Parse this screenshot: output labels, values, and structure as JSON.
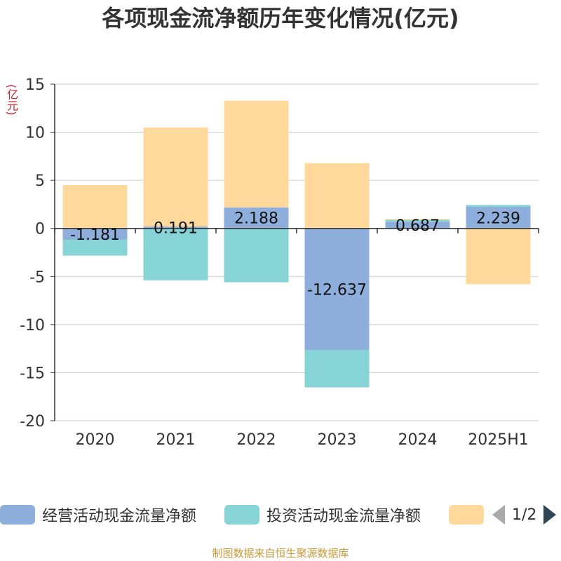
{
  "title": "各项现金流净额历年变化情况(亿元)",
  "unit": "(亿元)",
  "source": "制图数据来自恒生聚源数据库",
  "legend": {
    "items": [
      {
        "label": "经营活动现金流量净额",
        "color": "#8eaedb"
      },
      {
        "label": "投资活动现金流量净额",
        "color": "#86d4d6"
      },
      {
        "label": "",
        "color": "#fed99b"
      }
    ],
    "page": "1/2"
  },
  "chart_data": {
    "type": "bar",
    "stacked": true,
    "categories": [
      "2020",
      "2021",
      "2022",
      "2023",
      "2024",
      "2025H1"
    ],
    "series": [
      {
        "name": "经营活动现金流量净额",
        "color": "#8eaedb",
        "values": [
          -1.181,
          0.191,
          2.188,
          -12.637,
          0.687,
          2.239
        ],
        "labels": [
          "-1.181",
          "0.191",
          "2.188",
          "-12.637",
          "0.687",
          "2.239"
        ]
      },
      {
        "name": "投资活动现金流量净额",
        "color": "#86d4d6",
        "values": [
          -1.65,
          -5.4,
          -5.6,
          -3.9,
          0.2,
          0.2
        ]
      },
      {
        "name": "",
        "color": "#fed99b",
        "values": [
          4.5,
          10.3,
          11.1,
          6.8,
          0.1,
          -5.8
        ]
      }
    ],
    "yticks": [
      15,
      10,
      5,
      0,
      -5,
      -10,
      -15,
      -20
    ],
    "ylim": [
      -20,
      15
    ],
    "grid": true
  }
}
